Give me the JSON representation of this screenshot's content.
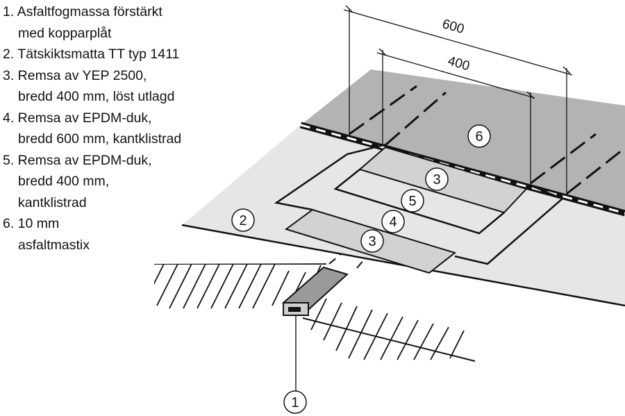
{
  "legend": [
    {
      "line1": "1. Asfaltfogmassa förstärkt",
      "line2": "med kopparplåt"
    },
    {
      "line1": "2. Tätskiktsmatta TT typ 1411",
      "line2": ""
    },
    {
      "line1": "3. Remsa av YEP 2500,",
      "line2": "bredd 400 mm, löst utlagd"
    },
    {
      "line1": "4. Remsa av EPDM-duk,",
      "line2": "bredd 600 mm, kantklistrad"
    },
    {
      "line1": "5. Remsa av EPDM-duk,",
      "line2": "bredd 400 mm,",
      "line3": "kantklistrad"
    },
    {
      "line1": "6. 10 mm",
      "line2": "asfaltmastix"
    }
  ],
  "dimensions": {
    "outer": "600",
    "inner": "400"
  },
  "callouts": {
    "c1": "1",
    "c2": "2",
    "c3a": "3",
    "c3b": "3",
    "c4": "4",
    "c5": "5",
    "c6": "6"
  },
  "colors": {
    "membrane": "#e6e6e6",
    "mastic": "#b3b3b3",
    "strip": "#d2d2d2",
    "line": "#111111"
  }
}
